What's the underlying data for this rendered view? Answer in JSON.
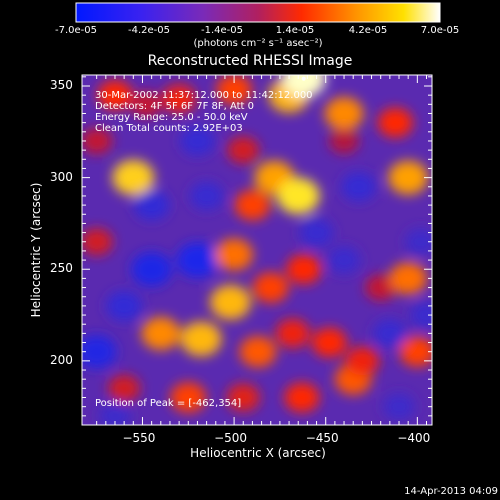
{
  "colorbar": {
    "tick_labels": [
      "-7.0e-05",
      "-4.2e-05",
      "-1.4e-05",
      "1.4e-05",
      "4.2e-05",
      "7.0e-05"
    ],
    "unit": "(photons cm⁻² s⁻¹ asec⁻²)",
    "range": [
      -7e-05,
      7e-05
    ]
  },
  "chart_data": {
    "type": "heatmap",
    "title": "Reconstructed RHESSI Image",
    "xlabel": "Heliocentric X (arcsec)",
    "ylabel": "Heliocentric Y (arcsec)",
    "xlim": [
      -583,
      -392
    ],
    "ylim": [
      165,
      356
    ],
    "xticks": [
      -550,
      -500,
      -450,
      -400
    ],
    "yticks": [
      200,
      250,
      300,
      350
    ],
    "xtick_labels": [
      "−550",
      "−500",
      "−450",
      "−400"
    ],
    "ytick_labels": [
      "200",
      "250",
      "300",
      "350"
    ],
    "colormap": "blue-purple-red-yellow-white",
    "annotations": [
      "30-Mar-2002 11:37:12.000 to 11:42:12.000",
      "Detectors: 4F 5F 6F 7F 8F, Att 0",
      "Energy Range: 25.0 - 50.0 keV",
      "Clean    Total counts: 2.92E+03"
    ],
    "peak_label": "Position of Peak = [-462,354]",
    "peak": [
      -462,
      354
    ],
    "blobs": [
      {
        "x": -565,
        "y": 345,
        "v": 0.55
      },
      {
        "x": -548,
        "y": 340,
        "v": 0.35
      },
      {
        "x": -530,
        "y": 343,
        "v": 0.5
      },
      {
        "x": -500,
        "y": 348,
        "v": 0.6
      },
      {
        "x": -470,
        "y": 345,
        "v": 0.85
      },
      {
        "x": -462,
        "y": 354,
        "v": 1.0
      },
      {
        "x": -440,
        "y": 335,
        "v": 0.75
      },
      {
        "x": -412,
        "y": 330,
        "v": 0.55
      },
      {
        "x": -555,
        "y": 300,
        "v": 0.9
      },
      {
        "x": -575,
        "y": 320,
        "v": 0.35
      },
      {
        "x": -520,
        "y": 320,
        "v": -0.55
      },
      {
        "x": -545,
        "y": 285,
        "v": -0.6
      },
      {
        "x": -495,
        "y": 315,
        "v": 0.4
      },
      {
        "x": -478,
        "y": 300,
        "v": 0.8
      },
      {
        "x": -465,
        "y": 290,
        "v": 0.95
      },
      {
        "x": -490,
        "y": 285,
        "v": 0.6
      },
      {
        "x": -455,
        "y": 270,
        "v": -0.5
      },
      {
        "x": -432,
        "y": 295,
        "v": -0.55
      },
      {
        "x": -440,
        "y": 320,
        "v": 0.3
      },
      {
        "x": -405,
        "y": 300,
        "v": 0.8
      },
      {
        "x": -398,
        "y": 265,
        "v": -0.4
      },
      {
        "x": -545,
        "y": 250,
        "v": -0.85
      },
      {
        "x": -520,
        "y": 255,
        "v": -0.9
      },
      {
        "x": -560,
        "y": 230,
        "v": -0.6
      },
      {
        "x": -575,
        "y": 265,
        "v": 0.4
      },
      {
        "x": -500,
        "y": 258,
        "v": 0.7
      },
      {
        "x": -502,
        "y": 232,
        "v": 0.85
      },
      {
        "x": -480,
        "y": 240,
        "v": 0.6
      },
      {
        "x": -462,
        "y": 250,
        "v": 0.55
      },
      {
        "x": -420,
        "y": 240,
        "v": 0.35
      },
      {
        "x": -405,
        "y": 245,
        "v": 0.7
      },
      {
        "x": -440,
        "y": 255,
        "v": -0.45
      },
      {
        "x": -540,
        "y": 215,
        "v": 0.75
      },
      {
        "x": -518,
        "y": 212,
        "v": 0.85
      },
      {
        "x": -487,
        "y": 205,
        "v": 0.65
      },
      {
        "x": -468,
        "y": 215,
        "v": 0.5
      },
      {
        "x": -448,
        "y": 210,
        "v": 0.55
      },
      {
        "x": -415,
        "y": 215,
        "v": -0.5
      },
      {
        "x": -400,
        "y": 205,
        "v": 0.6
      },
      {
        "x": -575,
        "y": 205,
        "v": -0.8
      },
      {
        "x": -560,
        "y": 185,
        "v": 0.4
      },
      {
        "x": -525,
        "y": 180,
        "v": 0.6
      },
      {
        "x": -495,
        "y": 180,
        "v": 0.45
      },
      {
        "x": -463,
        "y": 180,
        "v": 0.55
      },
      {
        "x": -435,
        "y": 190,
        "v": 0.65
      },
      {
        "x": -410,
        "y": 175,
        "v": -0.4
      },
      {
        "x": -430,
        "y": 200,
        "v": 0.5
      },
      {
        "x": -515,
        "y": 290,
        "v": -0.5
      },
      {
        "x": -565,
        "y": 170,
        "v": -0.4
      },
      {
        "x": -395,
        "y": 225,
        "v": -0.45
      }
    ]
  },
  "timestamp": "14-Apr-2013 04:09"
}
